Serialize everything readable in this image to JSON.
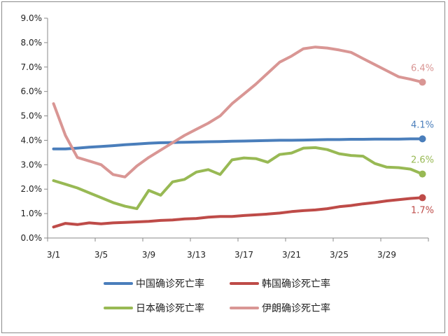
{
  "chart_data": {
    "type": "line",
    "title": "",
    "xlabel": "",
    "ylabel": "",
    "ylim": [
      0,
      9
    ],
    "y_ticks": [
      "0.0%",
      "1.0%",
      "2.0%",
      "3.0%",
      "4.0%",
      "5.0%",
      "6.0%",
      "7.0%",
      "8.0%",
      "9.0%"
    ],
    "x_tick_labels": [
      "3/1",
      "3/5",
      "3/9",
      "3/13",
      "3/17",
      "3/21",
      "3/25",
      "3/29"
    ],
    "x": [
      "3/1",
      "3/2",
      "3/3",
      "3/4",
      "3/5",
      "3/6",
      "3/7",
      "3/8",
      "3/9",
      "3/10",
      "3/11",
      "3/12",
      "3/13",
      "3/14",
      "3/15",
      "3/16",
      "3/17",
      "3/18",
      "3/19",
      "3/20",
      "3/21",
      "3/22",
      "3/23",
      "3/24",
      "3/25",
      "3/26",
      "3/27",
      "3/28",
      "3/29",
      "3/30",
      "3/31",
      "4/1"
    ],
    "legend_position": "bottom",
    "grid": false,
    "series": [
      {
        "name": "中国确诊死亡率",
        "color": "#4a7ebb",
        "end_label": "4.1%",
        "values": [
          3.65,
          3.65,
          3.68,
          3.72,
          3.75,
          3.78,
          3.82,
          3.85,
          3.88,
          3.9,
          3.91,
          3.92,
          3.93,
          3.94,
          3.95,
          3.96,
          3.97,
          3.98,
          3.99,
          4.0,
          4.0,
          4.01,
          4.02,
          4.03,
          4.03,
          4.04,
          4.04,
          4.05,
          4.05,
          4.05,
          4.06,
          4.06
        ]
      },
      {
        "name": "韩国确诊死亡率",
        "color": "#be4b48",
        "end_label": "1.7%",
        "values": [
          0.45,
          0.6,
          0.55,
          0.62,
          0.58,
          0.62,
          0.64,
          0.66,
          0.68,
          0.72,
          0.74,
          0.78,
          0.8,
          0.85,
          0.88,
          0.88,
          0.92,
          0.95,
          0.98,
          1.02,
          1.08,
          1.12,
          1.15,
          1.2,
          1.28,
          1.33,
          1.4,
          1.45,
          1.52,
          1.57,
          1.62,
          1.65
        ]
      },
      {
        "name": "日本确诊死亡率",
        "color": "#98b954",
        "end_label": "2.6%",
        "values": [
          2.35,
          2.2,
          2.05,
          1.85,
          1.65,
          1.45,
          1.3,
          1.2,
          1.95,
          1.75,
          2.3,
          2.4,
          2.7,
          2.8,
          2.6,
          3.2,
          3.28,
          3.25,
          3.1,
          3.42,
          3.48,
          3.68,
          3.7,
          3.62,
          3.45,
          3.38,
          3.35,
          3.05,
          2.9,
          2.88,
          2.82,
          2.62
        ]
      },
      {
        "name": "伊朗确诊死亡率",
        "color": "#d99694",
        "end_label": "6.4%",
        "values": [
          5.5,
          4.2,
          3.3,
          3.15,
          3.0,
          2.6,
          2.5,
          2.95,
          3.3,
          3.6,
          3.9,
          4.2,
          4.45,
          4.7,
          5.0,
          5.5,
          5.9,
          6.3,
          6.75,
          7.2,
          7.45,
          7.75,
          7.82,
          7.78,
          7.7,
          7.6,
          7.35,
          7.1,
          6.85,
          6.6,
          6.5,
          6.38
        ]
      }
    ]
  }
}
